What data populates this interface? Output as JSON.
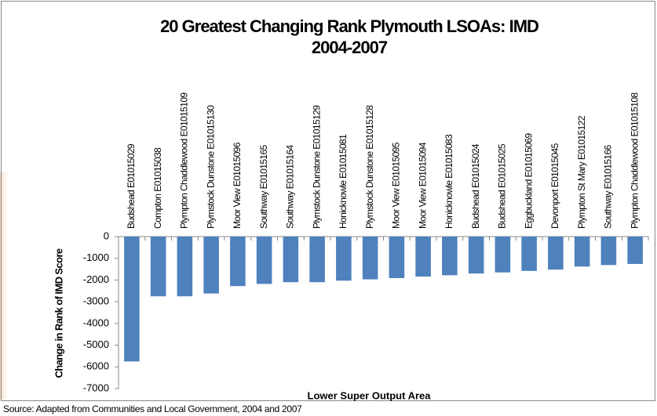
{
  "chart_data": {
    "type": "bar",
    "title": "20 Greatest Changing Rank Plymouth LSOAs: IMD",
    "subtitle": "2004-2007",
    "x_label": "Lower Super Output Area",
    "y_label": "Change in Rank of IMD Score",
    "source": "Source:  Adapted from Communities and Local Government, 2004 and 2007",
    "categories": [
      "Budshead E01015029",
      "Compton E01015038",
      "Plympton Chaddlewood E01015109",
      "Plymstock Dunstone E01015130",
      "Moor View E01015096",
      "Southway E01015165",
      "Southway E01015164",
      "Plymstock Dunstone E01015129",
      "Honicknowle E01015081",
      "Plymstock Dunstone E01015128",
      "Moor View E01015095",
      "Moor View E01015094",
      "Honicknowle E01015083",
      "Budshead E01015024",
      "Budshead E01015025",
      "Eggbuckland E01015069",
      "Devonport E01015045",
      "Plympton St Mary E01015122",
      "Southway E01015166",
      "Plympton Chaddlewood E01015108"
    ],
    "values": [
      -5750,
      -2750,
      -2750,
      -2620,
      -2280,
      -2180,
      -2100,
      -2100,
      -2030,
      -1970,
      -1910,
      -1840,
      -1780,
      -1700,
      -1650,
      -1580,
      -1520,
      -1380,
      -1310,
      -1260
    ],
    "color": "#4f81bd",
    "ylim": [
      -7000,
      0
    ],
    "yticks": [
      0,
      -1000,
      -2000,
      -3000,
      -4000,
      -5000,
      -6000,
      -7000
    ],
    "grid": false
  }
}
